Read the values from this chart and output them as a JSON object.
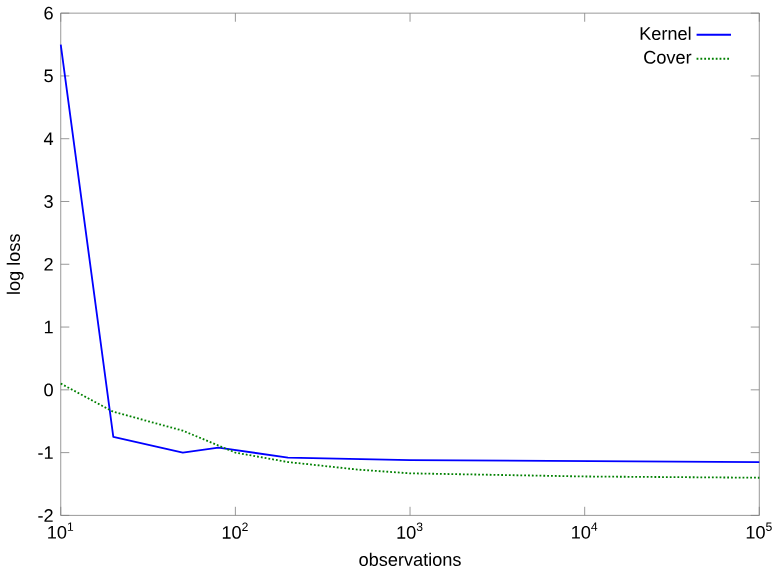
{
  "chart_data": {
    "type": "line",
    "xlabel": "observations",
    "ylabel": "log loss",
    "log": "x",
    "legend": "top right",
    "grid": false,
    "xlim": [
      10,
      100000
    ],
    "ylim": [
      -2,
      6
    ],
    "xticks": [
      {
        "value": 10,
        "label": "10$^{1}$"
      },
      {
        "value": 100,
        "label": "10$^{2}$"
      },
      {
        "value": 1000,
        "label": "10$^{3}$"
      },
      {
        "value": 10000,
        "label": "10$^{4}$"
      },
      {
        "value": 100000,
        "label": "10$^{5}$"
      }
    ],
    "yticks": [
      -2,
      -1,
      0,
      1,
      2,
      3,
      4,
      5,
      6
    ],
    "series": [
      {
        "name": "Kernel",
        "color": "#0000ff",
        "line_style": "solid",
        "x": [
          10,
          20,
          50,
          80,
          200,
          1000,
          100000
        ],
        "values": [
          5.5,
          -0.75,
          -1.0,
          -0.92,
          -1.08,
          -1.12,
          -1.15
        ]
      },
      {
        "name": "Cover",
        "color": "#008000",
        "line_style": "dotted",
        "x": [
          10,
          20,
          50,
          100,
          200,
          500,
          1000,
          10000,
          100000
        ],
        "values": [
          0.1,
          -0.35,
          -0.65,
          -1.0,
          -1.15,
          -1.27,
          -1.33,
          -1.38,
          -1.4
        ]
      }
    ]
  }
}
